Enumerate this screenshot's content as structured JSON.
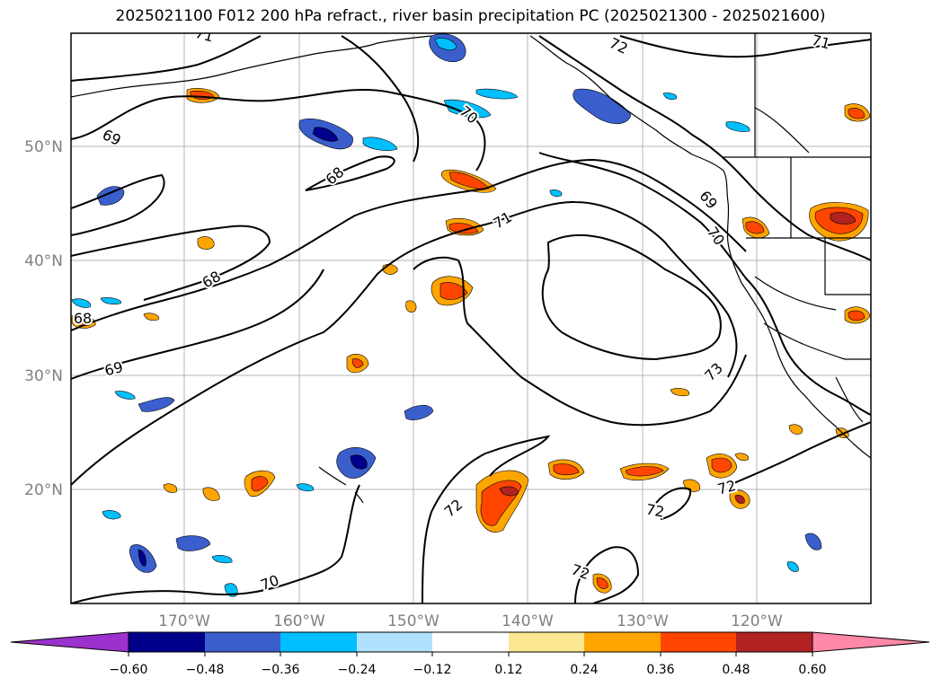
{
  "title": "2025021100 F012 200 hPa refract., river basin precipitation PC (2025021300 - 2025021600)",
  "map": {
    "lat_labels": [
      "50°N",
      "40°N",
      "30°N",
      "20°N"
    ],
    "lon_labels": [
      "170°W",
      "160°W",
      "150°W",
      "140°W",
      "130°W",
      "120°W"
    ],
    "contour_labels": [
      "71",
      "72",
      "71",
      "70",
      "69",
      "68",
      "71",
      "68",
      "69",
      "68",
      "69",
      "70",
      "73",
      "72",
      "72",
      "72",
      "72",
      "70"
    ]
  },
  "colorbar": {
    "ticks": [
      "−0.60",
      "−0.48",
      "−0.36",
      "−0.24",
      "−0.12",
      "0.12",
      "0.24",
      "0.36",
      "0.48",
      "0.60"
    ],
    "colors": [
      "#9b32cd",
      "#00008b",
      "#3a5fcd",
      "#00bfff",
      "#b0e2ff",
      "#ffffff",
      "#fbe78f",
      "#ffa500",
      "#ff4500",
      "#b22222",
      "#ff88a8"
    ]
  }
}
